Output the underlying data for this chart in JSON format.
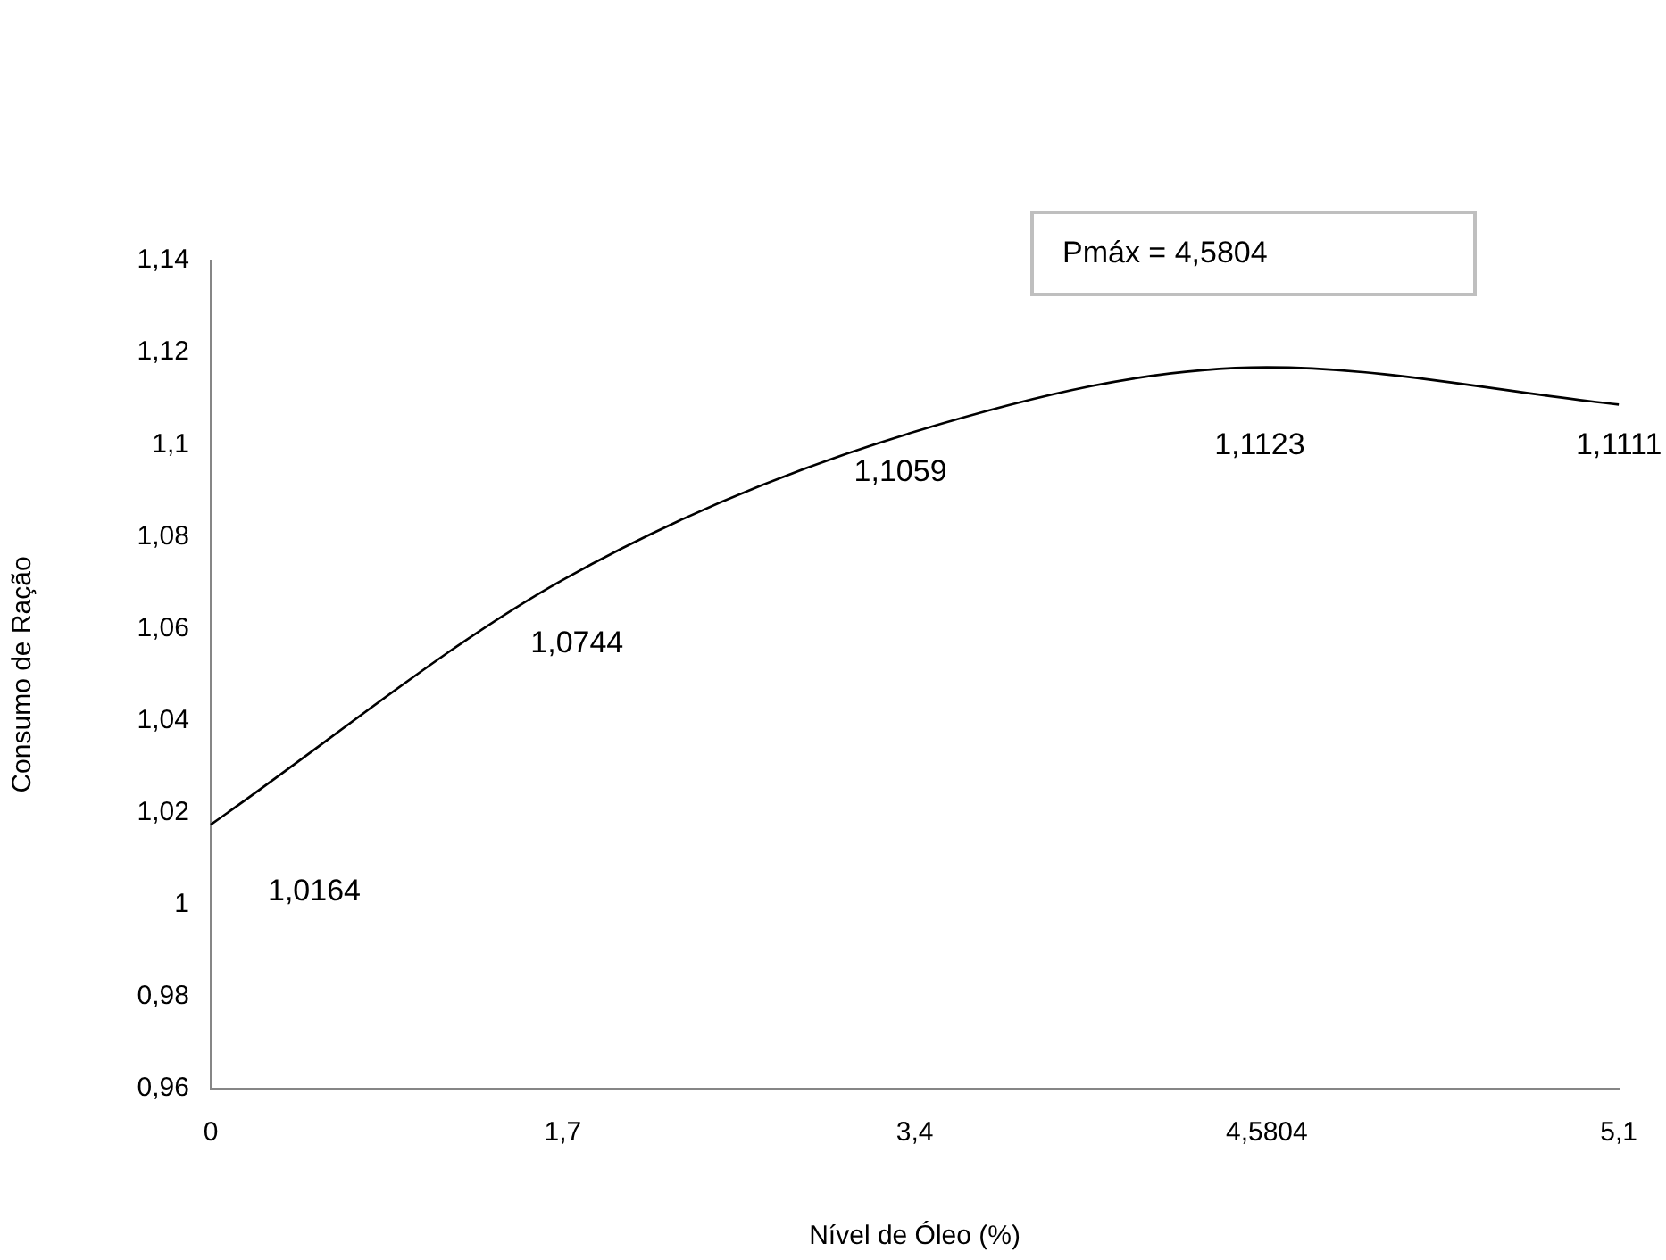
{
  "chart_data": {
    "type": "line",
    "xlabel": "Nível de Óleo (%)",
    "ylabel": "Consumo de Ração",
    "categories": [
      "0",
      "1,7",
      "3,4",
      "4,5804",
      "5,1"
    ],
    "series": [
      {
        "color": "#000000",
        "values": [
          1.0174,
          1.0706,
          1.1028,
          1.1168,
          1.1087
        ]
      }
    ],
    "ylim": [
      0.96,
      1.14
    ],
    "yticks": [
      {
        "value": 0.96,
        "label": "0,96"
      },
      {
        "value": 0.98,
        "label": "0,98"
      },
      {
        "value": 1,
        "label": "1"
      },
      {
        "value": 1.02,
        "label": "1,02"
      },
      {
        "value": 1.04,
        "label": "1,04"
      },
      {
        "value": 1.06,
        "label": "1,06"
      },
      {
        "value": 1.08,
        "label": "1,08"
      },
      {
        "value": 1.1,
        "label": "1,1"
      },
      {
        "value": 1.12,
        "label": "1,12"
      },
      {
        "value": 1.14,
        "label": "1,14"
      }
    ],
    "grid": false,
    "legend": false,
    "marker": "none",
    "line_style": "solid",
    "annotations": [
      "Pmáx = 4,5804",
      "1,0164",
      "1,0744",
      "1,1059",
      "1,1123",
      "1,1111"
    ]
  }
}
